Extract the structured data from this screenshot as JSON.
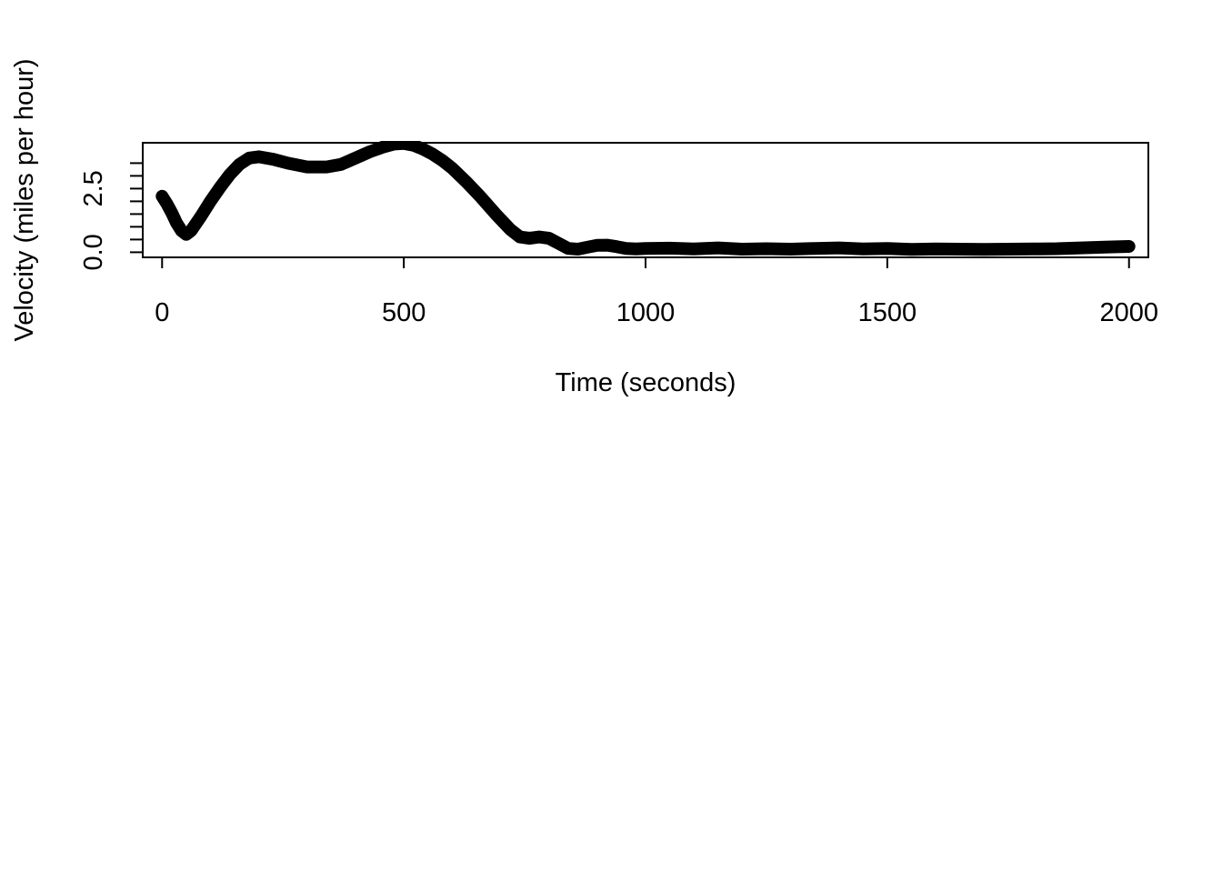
{
  "chart_data": {
    "type": "line",
    "title": "",
    "xlabel": "Time (seconds)",
    "ylabel": "Velocity (miles per hour)",
    "xlim": [
      -40,
      2040
    ],
    "ylim": [
      -0.2,
      4.3
    ],
    "x_ticks": [
      0,
      500,
      1000,
      1500,
      2000
    ],
    "x_tick_labels": [
      "0",
      "500",
      "1000",
      "1500",
      "2000"
    ],
    "y_ticks": [
      0,
      0.5,
      1,
      1.5,
      2,
      2.5,
      3,
      3.5
    ],
    "y_labeled_ticks": [
      0,
      2.5
    ],
    "y_tick_labels": [
      "0.0",
      "2.5"
    ],
    "grid": false,
    "line_color": "#000000",
    "series": [
      {
        "x": [
          0,
          10,
          20,
          30,
          40,
          50,
          60,
          80,
          100,
          120,
          140,
          160,
          180,
          200,
          230,
          260,
          300,
          340,
          370,
          400,
          430,
          460,
          480,
          500,
          520,
          540,
          560,
          580,
          600,
          630,
          660,
          690,
          720,
          740,
          760,
          780,
          800,
          820,
          840,
          860,
          880,
          900,
          920,
          940,
          960,
          980,
          1000,
          1050,
          1100,
          1150,
          1200,
          1250,
          1300,
          1350,
          1400,
          1450,
          1500,
          1550,
          1600,
          1650,
          1700,
          1750,
          1800,
          1850,
          1900,
          1950,
          2000
        ],
        "y": [
          2.2,
          1.9,
          1.55,
          1.15,
          0.85,
          0.7,
          0.85,
          1.4,
          2.0,
          2.55,
          3.05,
          3.45,
          3.7,
          3.75,
          3.65,
          3.5,
          3.35,
          3.35,
          3.45,
          3.7,
          3.95,
          4.15,
          4.25,
          4.27,
          4.2,
          4.05,
          3.85,
          3.6,
          3.3,
          2.75,
          2.15,
          1.5,
          0.9,
          0.6,
          0.55,
          0.6,
          0.55,
          0.35,
          0.15,
          0.12,
          0.2,
          0.27,
          0.28,
          0.22,
          0.15,
          0.13,
          0.15,
          0.16,
          0.13,
          0.17,
          0.12,
          0.14,
          0.12,
          0.15,
          0.17,
          0.13,
          0.15,
          0.11,
          0.13,
          0.12,
          0.11,
          0.12,
          0.13,
          0.14,
          0.17,
          0.2,
          0.23
        ]
      }
    ]
  }
}
